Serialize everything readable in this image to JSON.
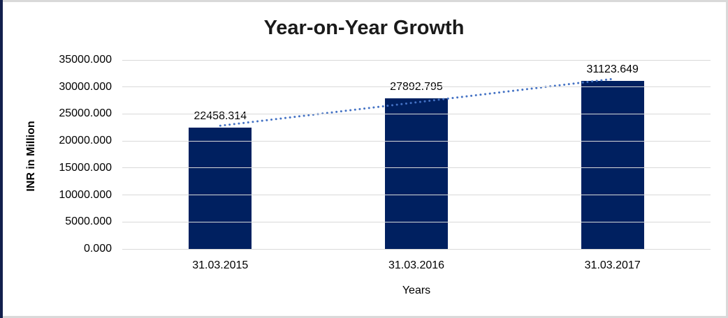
{
  "frame": {
    "background": "#ffffff",
    "edge_color": "#d9d9d9",
    "left_border_color": "#13204d"
  },
  "chart_data": {
    "type": "bar",
    "title": "Year-on-Year Growth",
    "xlabel": "Years",
    "ylabel": "INR in Million",
    "categories": [
      "31.03.2015",
      "31.03.2016",
      "31.03.2017"
    ],
    "values": [
      22458.314,
      27892.795,
      31123.649
    ],
    "data_labels": [
      "22458.314",
      "27892.795",
      "31123.649"
    ],
    "ylim": [
      0,
      35000
    ],
    "ytick_step": 5000,
    "ytick_labels": [
      "35000.000",
      "30000.000",
      "25000.000",
      "20000.000",
      "15000.000",
      "10000.000",
      "5000.000",
      "0.000"
    ],
    "grid": true,
    "legend": "none",
    "bar_color": "#002060",
    "gridline_color": "#d9d9d9",
    "trendline": {
      "style": "dotted",
      "color": "#4472c4"
    }
  }
}
